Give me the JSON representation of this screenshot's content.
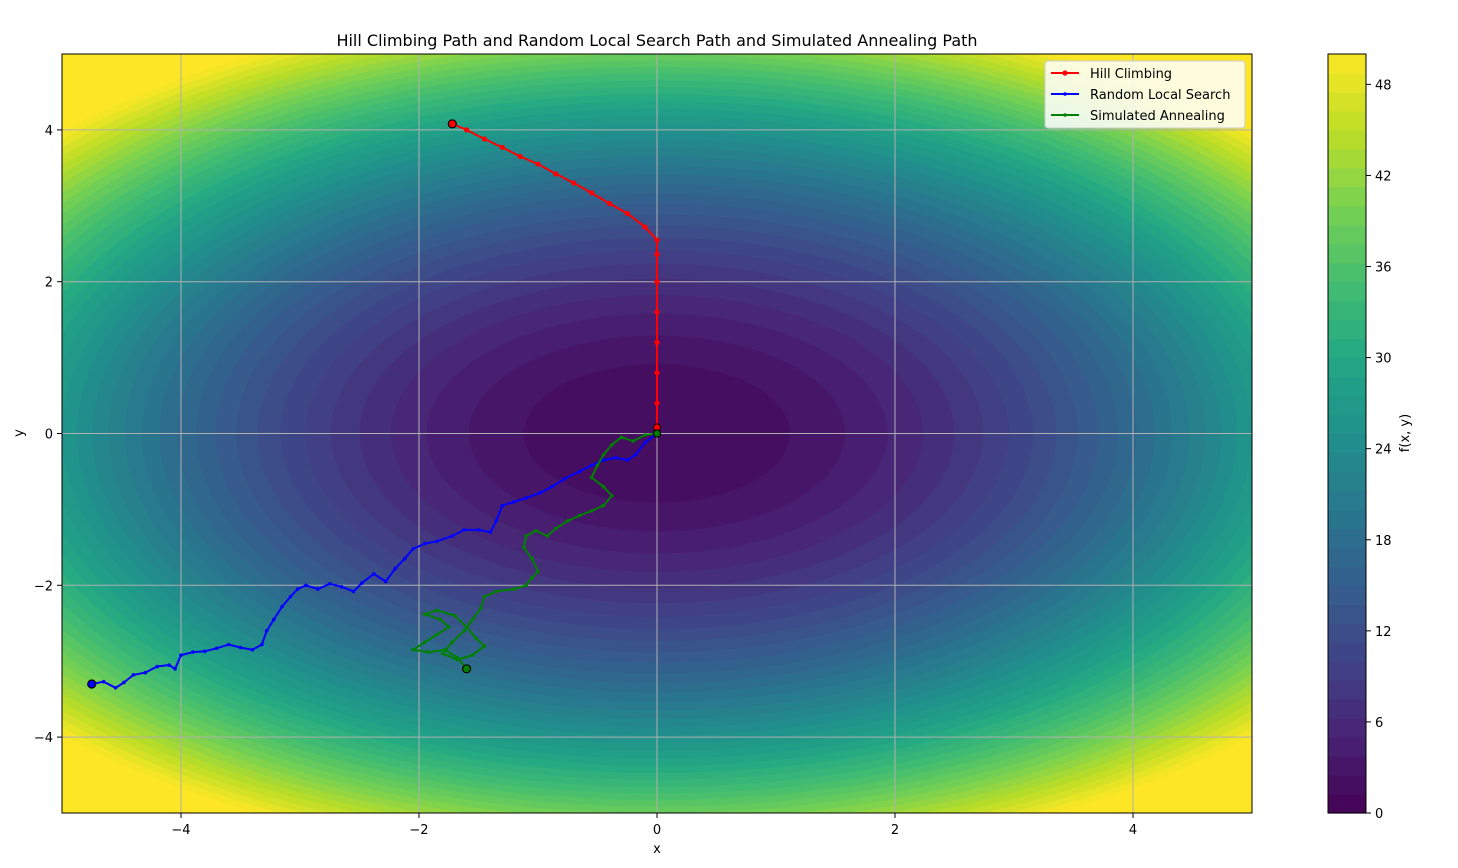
{
  "chart_data": {
    "type": "line",
    "title": "Hill Climbing Path and Random Local Search Path and Simulated Annealing Path",
    "xlabel": "x",
    "ylabel": "y",
    "xlim": [
      -5,
      5
    ],
    "ylim": [
      -5,
      5
    ],
    "xticks": [
      -4,
      -2,
      0,
      2,
      4
    ],
    "yticks": [
      -4,
      -2,
      0,
      2,
      4
    ],
    "xtick_labels": [
      "−4",
      "−2",
      "0",
      "2",
      "4"
    ],
    "ytick_labels": [
      "−4",
      "−2",
      "0",
      "2",
      "4"
    ],
    "grid": true,
    "legend_position": "top-right",
    "background": {
      "type": "filled-contour",
      "function": "x^2 + y^2 scaled elliptic bowl",
      "colormap": "viridis",
      "levels": 40,
      "vmin": 0,
      "vmax": 50
    },
    "colorbar": {
      "label": "f(x, y)",
      "ticks": [
        0,
        6,
        12,
        18,
        24,
        30,
        36,
        42,
        48
      ],
      "range": [
        0,
        50
      ]
    },
    "series": [
      {
        "name": "Hill Climbing",
        "color": "#ff0000",
        "marker": "circle",
        "points": [
          [
            -1.72,
            4.08
          ],
          [
            -1.6,
            4.0
          ],
          [
            -1.45,
            3.88
          ],
          [
            -1.3,
            3.77
          ],
          [
            -1.15,
            3.65
          ],
          [
            -1.0,
            3.55
          ],
          [
            -0.85,
            3.42
          ],
          [
            -0.7,
            3.3
          ],
          [
            -0.55,
            3.17
          ],
          [
            -0.4,
            3.03
          ],
          [
            -0.25,
            2.9
          ],
          [
            -0.1,
            2.72
          ],
          [
            0.0,
            2.55
          ],
          [
            0.0,
            2.36
          ],
          [
            0.0,
            2.0
          ],
          [
            0.0,
            1.6
          ],
          [
            0.0,
            1.2
          ],
          [
            0.0,
            0.8
          ],
          [
            0.0,
            0.4
          ],
          [
            0.0,
            0.08
          ]
        ]
      },
      {
        "name": "Random Local Search",
        "color": "#0000ff",
        "marker": "dot",
        "points": [
          [
            -4.75,
            -3.3
          ],
          [
            -4.65,
            -3.27
          ],
          [
            -4.55,
            -3.35
          ],
          [
            -4.48,
            -3.28
          ],
          [
            -4.4,
            -3.18
          ],
          [
            -4.3,
            -3.15
          ],
          [
            -4.2,
            -3.07
          ],
          [
            -4.1,
            -3.05
          ],
          [
            -4.05,
            -3.1
          ],
          [
            -4.0,
            -2.92
          ],
          [
            -3.9,
            -2.88
          ],
          [
            -3.8,
            -2.87
          ],
          [
            -3.7,
            -2.83
          ],
          [
            -3.6,
            -2.78
          ],
          [
            -3.5,
            -2.82
          ],
          [
            -3.4,
            -2.85
          ],
          [
            -3.32,
            -2.78
          ],
          [
            -3.28,
            -2.6
          ],
          [
            -3.22,
            -2.45
          ],
          [
            -3.15,
            -2.28
          ],
          [
            -3.08,
            -2.15
          ],
          [
            -3.02,
            -2.05
          ],
          [
            -2.95,
            -2.0
          ],
          [
            -2.85,
            -2.05
          ],
          [
            -2.75,
            -1.98
          ],
          [
            -2.65,
            -2.02
          ],
          [
            -2.55,
            -2.08
          ],
          [
            -2.48,
            -1.97
          ],
          [
            -2.38,
            -1.85
          ],
          [
            -2.28,
            -1.95
          ],
          [
            -2.2,
            -1.78
          ],
          [
            -2.12,
            -1.65
          ],
          [
            -2.05,
            -1.52
          ],
          [
            -1.95,
            -1.45
          ],
          [
            -1.85,
            -1.42
          ],
          [
            -1.72,
            -1.35
          ],
          [
            -1.62,
            -1.27
          ],
          [
            -1.5,
            -1.27
          ],
          [
            -1.4,
            -1.3
          ],
          [
            -1.35,
            -1.15
          ],
          [
            -1.3,
            -0.95
          ],
          [
            -1.2,
            -0.9
          ],
          [
            -1.1,
            -0.85
          ],
          [
            -0.98,
            -0.78
          ],
          [
            -0.88,
            -0.7
          ],
          [
            -0.78,
            -0.6
          ],
          [
            -0.65,
            -0.5
          ],
          [
            -0.55,
            -0.42
          ],
          [
            -0.45,
            -0.35
          ],
          [
            -0.35,
            -0.32
          ],
          [
            -0.25,
            -0.35
          ],
          [
            -0.18,
            -0.28
          ],
          [
            -0.1,
            -0.12
          ],
          [
            0.0,
            0.0
          ]
        ]
      },
      {
        "name": "Simulated Annealing",
        "color": "#008000",
        "marker": "dot",
        "points": [
          [
            -1.6,
            -3.1
          ],
          [
            -1.68,
            -2.95
          ],
          [
            -1.78,
            -2.85
          ],
          [
            -1.92,
            -2.88
          ],
          [
            -2.05,
            -2.85
          ],
          [
            -1.95,
            -2.75
          ],
          [
            -1.85,
            -2.65
          ],
          [
            -1.75,
            -2.55
          ],
          [
            -1.82,
            -2.45
          ],
          [
            -1.95,
            -2.38
          ],
          [
            -1.85,
            -2.33
          ],
          [
            -1.7,
            -2.4
          ],
          [
            -1.6,
            -2.55
          ],
          [
            -1.52,
            -2.7
          ],
          [
            -1.45,
            -2.8
          ],
          [
            -1.55,
            -2.92
          ],
          [
            -1.68,
            -2.98
          ],
          [
            -1.8,
            -2.9
          ],
          [
            -1.72,
            -2.75
          ],
          [
            -1.62,
            -2.6
          ],
          [
            -1.55,
            -2.45
          ],
          [
            -1.48,
            -2.3
          ],
          [
            -1.45,
            -2.15
          ],
          [
            -1.35,
            -2.08
          ],
          [
            -1.2,
            -2.05
          ],
          [
            -1.1,
            -2.0
          ],
          [
            -1.05,
            -1.9
          ],
          [
            -1.0,
            -1.82
          ],
          [
            -1.05,
            -1.65
          ],
          [
            -1.12,
            -1.5
          ],
          [
            -1.1,
            -1.35
          ],
          [
            -1.02,
            -1.28
          ],
          [
            -0.92,
            -1.35
          ],
          [
            -0.85,
            -1.25
          ],
          [
            -0.75,
            -1.15
          ],
          [
            -0.65,
            -1.08
          ],
          [
            -0.55,
            -1.02
          ],
          [
            -0.45,
            -0.95
          ],
          [
            -0.38,
            -0.82
          ],
          [
            -0.45,
            -0.7
          ],
          [
            -0.55,
            -0.58
          ],
          [
            -0.5,
            -0.42
          ],
          [
            -0.45,
            -0.28
          ],
          [
            -0.38,
            -0.15
          ],
          [
            -0.3,
            -0.05
          ],
          [
            -0.2,
            -0.1
          ],
          [
            -0.1,
            -0.02
          ],
          [
            0.0,
            0.0
          ]
        ]
      }
    ]
  }
}
